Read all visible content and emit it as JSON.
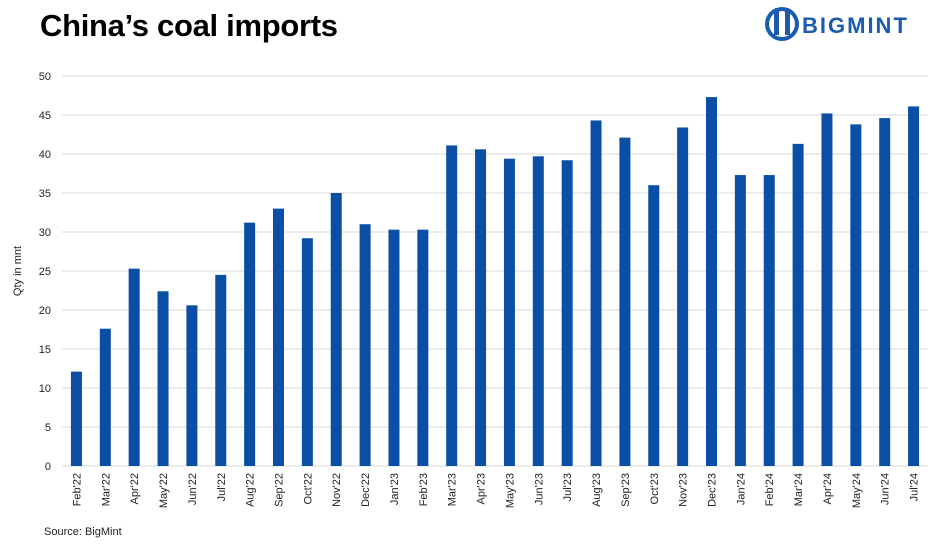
{
  "header": {
    "title": "China’s coal imports",
    "logo_text": "BIGMINT"
  },
  "footer": {
    "source": "Source: BigMint"
  },
  "colors": {
    "bar": "#0a4ea5",
    "grid": "#d9d9d9",
    "brand": "#1a5bb0"
  },
  "chart_data": {
    "type": "bar",
    "title": "China’s coal imports",
    "ylabel": "Qty in mnt",
    "xlabel": "",
    "ylim": [
      0,
      50
    ],
    "yticks": [
      0,
      5,
      10,
      15,
      20,
      25,
      30,
      35,
      40,
      45,
      50
    ],
    "grid": true,
    "categories": [
      "Feb'22",
      "Mar'22",
      "Apr'22",
      "May'22",
      "Jun'22",
      "Jul'22",
      "Aug'22",
      "Sep'22",
      "Oct'22",
      "Nov'22",
      "Dec'22",
      "Jan'23",
      "Feb'23",
      "Mar'23",
      "Apr'23",
      "May'23",
      "Jun'23",
      "Jul'23",
      "Aug'23",
      "Sep'23",
      "Oct'23",
      "Nov'23",
      "Dec'23",
      "Jan'24",
      "Feb'24",
      "Mar'24",
      "Apr'24",
      "May'24",
      "Jun'24",
      "Jul'24"
    ],
    "values": [
      12.1,
      17.6,
      25.3,
      22.4,
      20.6,
      24.5,
      31.2,
      33.0,
      29.2,
      35.0,
      31.0,
      30.3,
      30.3,
      41.1,
      40.6,
      39.4,
      39.7,
      39.2,
      44.3,
      42.1,
      36.0,
      43.4,
      47.3,
      37.3,
      37.3,
      41.3,
      45.2,
      43.8,
      44.6,
      46.1
    ]
  }
}
